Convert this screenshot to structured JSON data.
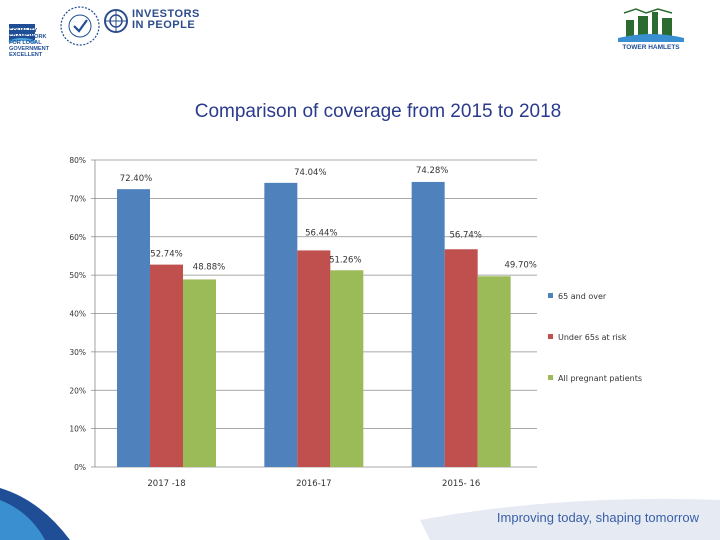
{
  "header": {
    "equality_lines": [
      "EQUALITY",
      "FRAMEWORK",
      "FOR LOCAL",
      "GOVERNMENT",
      "EXCELLENT"
    ],
    "investors_lines": [
      "INVESTORS",
      "IN PEOPLE"
    ],
    "council_name": "TOWER HAMLETS"
  },
  "footer": {
    "tagline": "Improving today, shaping tomorrow"
  },
  "chart_data": {
    "type": "bar",
    "title": "Comparison of coverage from 2015 to 2018",
    "categories": [
      "2017 -18",
      "2016-17",
      "2015- 16"
    ],
    "series": [
      {
        "name": "65 and over",
        "color": "#4f81bd",
        "values": [
          72.4,
          74.04,
          74.28
        ],
        "labels": [
          "72.40%",
          "74.04%",
          "74.28%"
        ]
      },
      {
        "name": "Under 65s at risk",
        "color": "#c0504d",
        "values": [
          52.74,
          56.44,
          56.74
        ],
        "labels": [
          "52.74%",
          "56.44%",
          "56.74%"
        ]
      },
      {
        "name": "All pregnant patients",
        "color": "#9bbb59",
        "values": [
          48.88,
          51.26,
          49.7
        ],
        "labels": [
          "48.88%",
          "51.26%",
          "49.70%"
        ]
      }
    ],
    "yticks": [
      "0%",
      "10%",
      "20%",
      "30%",
      "40%",
      "50%",
      "60%",
      "70%",
      "80%"
    ],
    "ylim": [
      0,
      80
    ],
    "legend": "right",
    "grid": true
  }
}
